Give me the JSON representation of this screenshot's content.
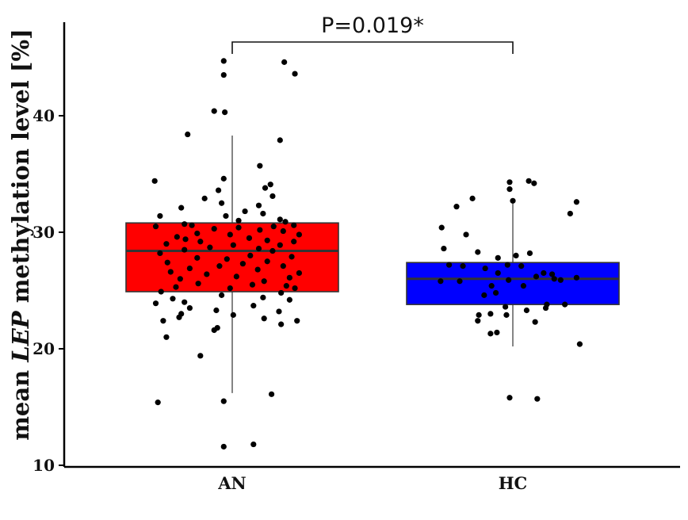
{
  "chart_data": {
    "type": "box",
    "ylabel_parts": [
      "mean ",
      "LEP",
      " methylation level [%]"
    ],
    "ylim": [
      10,
      46
    ],
    "yticks": [
      10,
      20,
      30,
      40
    ],
    "categories": [
      "AN",
      "HC"
    ],
    "colors": {
      "AN": "#ff0000",
      "HC": "#0000ff"
    },
    "annotation": "P=0.019*",
    "groups": [
      {
        "name": "AN",
        "q1": 24.9,
        "median": 28.4,
        "q3": 30.8,
        "whisker_low": 16.2,
        "whisker_high": 38.3,
        "points": [
          [
            -0.08,
            44.7
          ],
          [
            0.49,
            44.6
          ],
          [
            0.59,
            43.6
          ],
          [
            -0.08,
            43.5
          ],
          [
            -0.17,
            40.4
          ],
          [
            -0.07,
            40.3
          ],
          [
            -0.42,
            38.4
          ],
          [
            0.45,
            37.9
          ],
          [
            0.26,
            35.7
          ],
          [
            -0.08,
            34.6
          ],
          [
            -0.73,
            34.4
          ],
          [
            0.36,
            34.1
          ],
          [
            0.31,
            33.8
          ],
          [
            -0.13,
            33.6
          ],
          [
            0.38,
            33.1
          ],
          [
            -0.26,
            32.9
          ],
          [
            -0.1,
            32.5
          ],
          [
            0.25,
            32.3
          ],
          [
            -0.48,
            32.1
          ],
          [
            0.12,
            31.8
          ],
          [
            0.29,
            31.6
          ],
          [
            -0.06,
            31.4
          ],
          [
            -0.68,
            31.4
          ],
          [
            0.45,
            31.1
          ],
          [
            0.06,
            31.0
          ],
          [
            0.5,
            30.9
          ],
          [
            -0.45,
            30.7
          ],
          [
            -0.38,
            30.6
          ],
          [
            0.58,
            30.6
          ],
          [
            0.39,
            30.5
          ],
          [
            -0.72,
            30.5
          ],
          [
            0.06,
            30.4
          ],
          [
            -0.17,
            30.3
          ],
          [
            0.26,
            30.2
          ],
          [
            0.48,
            30.1
          ],
          [
            -0.33,
            29.9
          ],
          [
            -0.02,
            29.8
          ],
          [
            0.63,
            29.8
          ],
          [
            -0.52,
            29.6
          ],
          [
            0.16,
            29.5
          ],
          [
            -0.44,
            29.4
          ],
          [
            0.33,
            29.3
          ],
          [
            -0.3,
            29.2
          ],
          [
            0.58,
            29.2
          ],
          [
            -0.62,
            29.0
          ],
          [
            0.01,
            28.9
          ],
          [
            0.45,
            28.9
          ],
          [
            -0.21,
            28.7
          ],
          [
            0.25,
            28.6
          ],
          [
            -0.45,
            28.5
          ],
          [
            0.38,
            28.4
          ],
          [
            -0.68,
            28.2
          ],
          [
            0.17,
            28.0
          ],
          [
            -0.33,
            27.8
          ],
          [
            0.56,
            27.9
          ],
          [
            -0.05,
            27.7
          ],
          [
            0.33,
            27.5
          ],
          [
            -0.61,
            27.4
          ],
          [
            0.1,
            27.3
          ],
          [
            -0.12,
            27.1
          ],
          [
            0.48,
            27.1
          ],
          [
            -0.4,
            26.9
          ],
          [
            0.24,
            26.8
          ],
          [
            -0.58,
            26.6
          ],
          [
            0.63,
            26.5
          ],
          [
            -0.24,
            26.4
          ],
          [
            0.04,
            26.2
          ],
          [
            0.54,
            26.1
          ],
          [
            -0.49,
            26.0
          ],
          [
            0.3,
            25.8
          ],
          [
            -0.32,
            25.6
          ],
          [
            0.19,
            25.5
          ],
          [
            0.51,
            25.4
          ],
          [
            -0.53,
            25.3
          ],
          [
            0.59,
            25.2
          ],
          [
            -0.02,
            25.2
          ],
          [
            -0.67,
            24.9
          ],
          [
            0.46,
            24.8
          ],
          [
            -0.1,
            24.6
          ],
          [
            0.29,
            24.4
          ],
          [
            -0.56,
            24.3
          ],
          [
            0.54,
            24.2
          ],
          [
            -0.45,
            24.0
          ],
          [
            -0.72,
            23.9
          ],
          [
            0.2,
            23.7
          ],
          [
            -0.4,
            23.5
          ],
          [
            -0.15,
            23.3
          ],
          [
            0.44,
            23.2
          ],
          [
            -0.48,
            23.0
          ],
          [
            0.01,
            22.9
          ],
          [
            -0.5,
            22.7
          ],
          [
            0.3,
            22.6
          ],
          [
            -0.65,
            22.4
          ],
          [
            0.61,
            22.4
          ],
          [
            0.46,
            22.1
          ],
          [
            -0.14,
            21.8
          ],
          [
            -0.17,
            21.6
          ],
          [
            -0.62,
            21.0
          ],
          [
            -0.3,
            19.4
          ],
          [
            0.37,
            16.1
          ],
          [
            -0.7,
            15.4
          ],
          [
            -0.08,
            15.5
          ],
          [
            0.2,
            11.8
          ],
          [
            -0.08,
            11.6
          ]
        ]
      },
      {
        "name": "HC",
        "q1": 23.8,
        "median": 26.0,
        "q3": 27.4,
        "whisker_low": 20.2,
        "whisker_high": 32.9,
        "points": [
          [
            0.15,
            34.4
          ],
          [
            -0.03,
            34.3
          ],
          [
            0.2,
            34.2
          ],
          [
            -0.03,
            33.7
          ],
          [
            -0.38,
            32.9
          ],
          [
            -0.53,
            32.2
          ],
          [
            0.0,
            32.7
          ],
          [
            0.6,
            32.6
          ],
          [
            0.54,
            31.6
          ],
          [
            -0.67,
            30.4
          ],
          [
            -0.44,
            29.8
          ],
          [
            -0.65,
            28.6
          ],
          [
            -0.33,
            28.3
          ],
          [
            0.16,
            28.2
          ],
          [
            -0.14,
            27.8
          ],
          [
            0.03,
            28.0
          ],
          [
            -0.6,
            27.2
          ],
          [
            -0.47,
            27.1
          ],
          [
            -0.05,
            27.2
          ],
          [
            0.08,
            27.1
          ],
          [
            -0.26,
            26.9
          ],
          [
            0.29,
            26.5
          ],
          [
            -0.14,
            26.5
          ],
          [
            0.37,
            26.4
          ],
          [
            0.22,
            26.2
          ],
          [
            0.6,
            26.1
          ],
          [
            0.39,
            26.0
          ],
          [
            -0.68,
            25.8
          ],
          [
            -0.5,
            25.8
          ],
          [
            -0.04,
            25.9
          ],
          [
            0.45,
            25.9
          ],
          [
            -0.2,
            25.4
          ],
          [
            0.1,
            25.4
          ],
          [
            -0.16,
            24.8
          ],
          [
            -0.27,
            24.6
          ],
          [
            0.32,
            23.8
          ],
          [
            0.49,
            23.8
          ],
          [
            -0.07,
            23.6
          ],
          [
            0.31,
            23.5
          ],
          [
            0.13,
            23.3
          ],
          [
            -0.21,
            23.0
          ],
          [
            -0.32,
            22.9
          ],
          [
            -0.06,
            22.9
          ],
          [
            -0.33,
            22.4
          ],
          [
            0.21,
            22.3
          ],
          [
            -0.15,
            21.4
          ],
          [
            -0.21,
            21.3
          ],
          [
            0.63,
            20.4
          ],
          [
            -0.03,
            15.8
          ],
          [
            0.23,
            15.7
          ]
        ]
      }
    ],
    "grid": false,
    "legend": "none"
  }
}
